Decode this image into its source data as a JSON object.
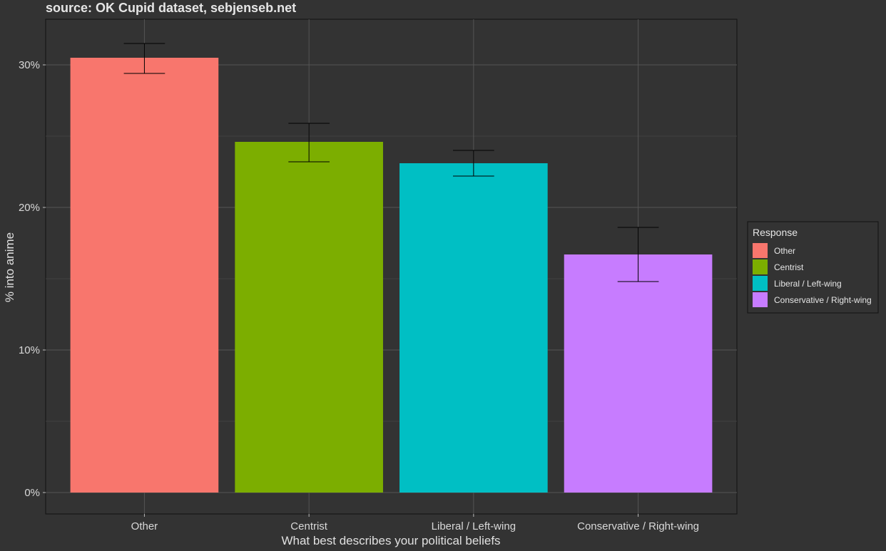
{
  "chart_data": {
    "type": "bar",
    "subtitle": "source: OK Cupid dataset, sebjenseb.net",
    "xlabel": "What best describes your political beliefs",
    "ylabel": "% into anime",
    "categories": [
      "Other",
      "Centrist",
      "Liberal / Left-wing",
      "Conservative / Right-wing"
    ],
    "values": [
      30.5,
      24.6,
      23.1,
      16.7
    ],
    "error_low": [
      29.4,
      23.2,
      22.2,
      14.8
    ],
    "error_high": [
      31.5,
      25.9,
      24.0,
      18.6
    ],
    "colors": [
      "#F8766D",
      "#7CAE00",
      "#00BFC4",
      "#C77CFF"
    ],
    "ylim": [
      -1.5,
      33.2
    ],
    "yticks": [
      0,
      10,
      20,
      30
    ],
    "ytick_labels": [
      "0%",
      "10%",
      "20%",
      "30%"
    ],
    "grid": true,
    "legend": {
      "title": "Response",
      "position": "right",
      "items": [
        "Other",
        "Centrist",
        "Liberal / Left-wing",
        "Conservative / Right-wing"
      ]
    }
  }
}
